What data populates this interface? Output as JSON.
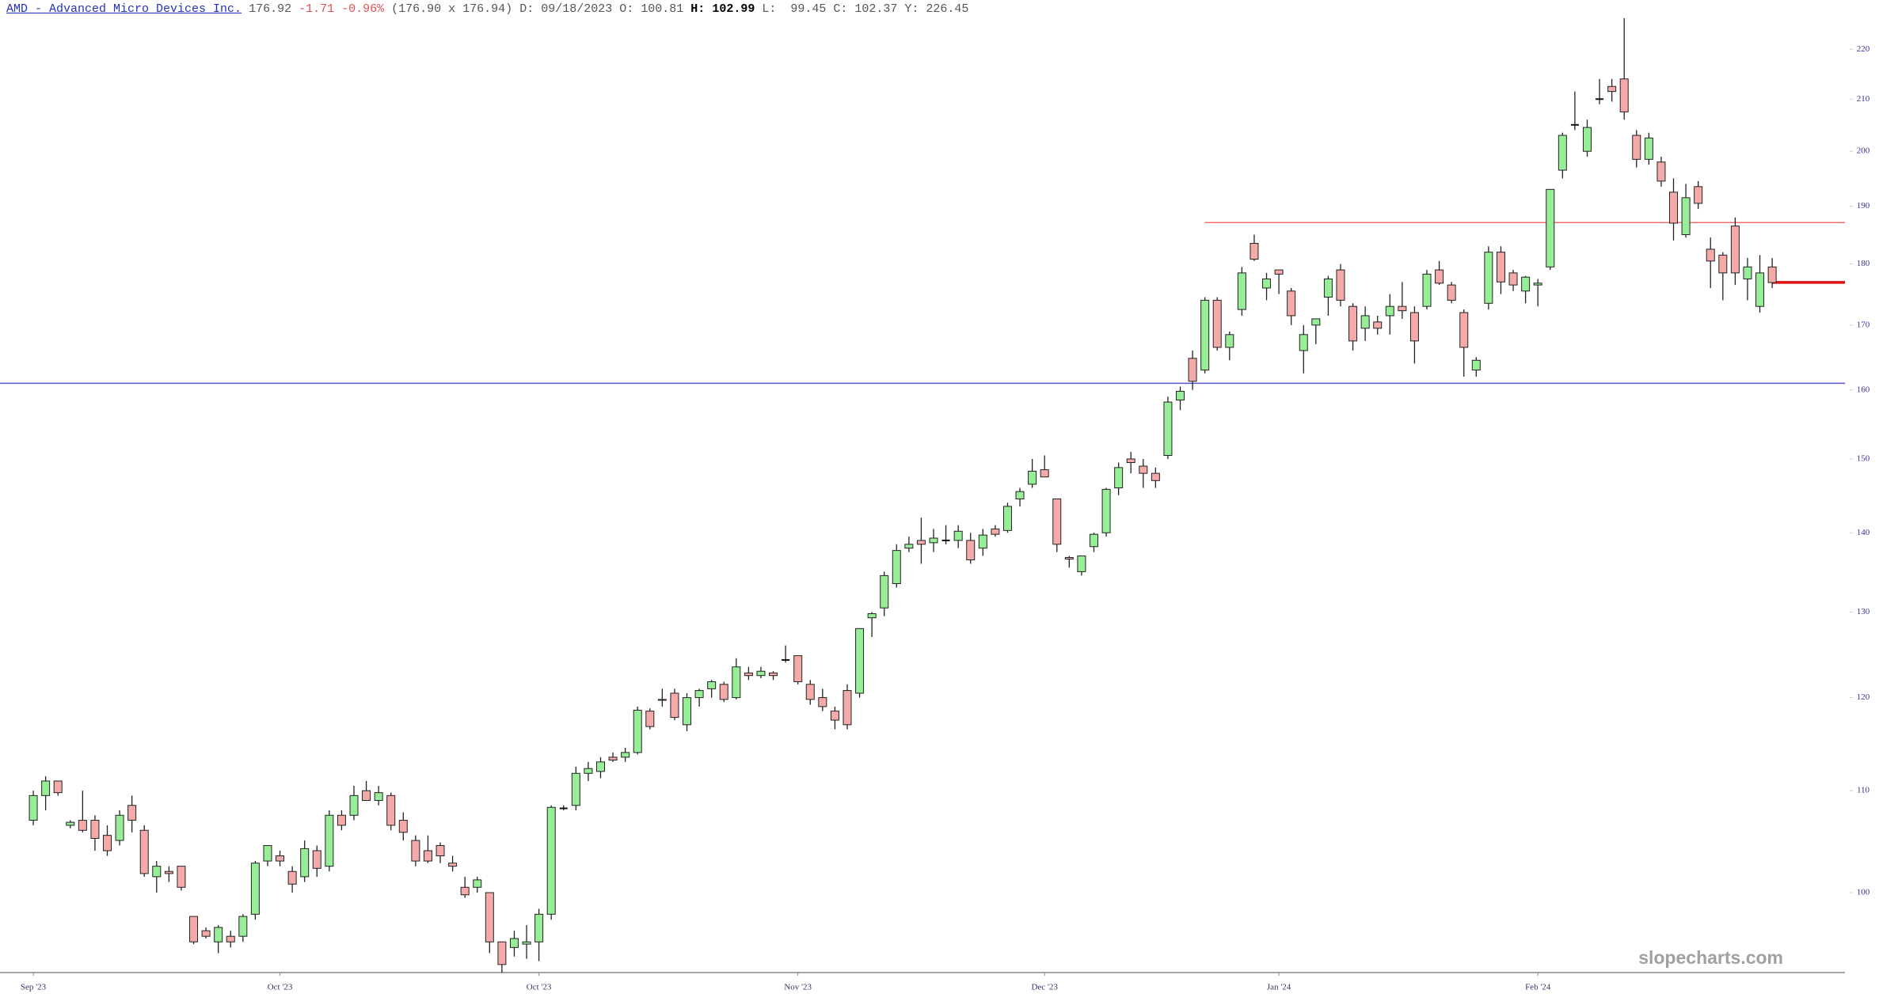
{
  "header": {
    "symbol": "AMD - Advanced Micro Devices Inc.",
    "last": "176.92",
    "change": "-1.71 -0.96%",
    "bidask": "(176.90 x 176.94)",
    "date": "D: 09/18/2023",
    "open": "O: 100.81",
    "high_label": "H:",
    "high": "102.99",
    "rest": "L:  99.45 C: 102.37 Y: 226.45"
  },
  "chart_data": {
    "type": "candlestick",
    "log_y": true,
    "ylim": [
      92.8,
      226.5
    ],
    "yticks": [
      100,
      110,
      120,
      130,
      140,
      150,
      160,
      170,
      180,
      190,
      200,
      210,
      220
    ],
    "xlim": [
      -2.7,
      146.9
    ],
    "xticks": [
      {
        "value": 0,
        "label": "Sep '23"
      },
      {
        "value": 20,
        "label": "Oct '23"
      },
      {
        "value": 41,
        "label": "Oct '23"
      },
      {
        "value": 62,
        "label": "Nov '23"
      },
      {
        "value": 82,
        "label": "Dec '23"
      },
      {
        "value": 101,
        "label": "Jan '24"
      },
      {
        "value": 122,
        "label": "Feb '24"
      }
    ],
    "up_color": "#98ee98",
    "down_color": "#f5aaaa",
    "hlines": [
      {
        "value": 161,
        "color": "#5555cc",
        "start": -2.7
      },
      {
        "value": 187.1,
        "color": "#f07070",
        "start": 95
      },
      {
        "value": 176.92,
        "color": "#e01010",
        "start": 141
      }
    ],
    "watermark": "slopecharts.com",
    "open": [
      107,
      109.5,
      111,
      106.5,
      107,
      107,
      105.5,
      105,
      108.5,
      106,
      101.5,
      102,
      102.5,
      97.8,
      96.5,
      95.5,
      96,
      96,
      98,
      103,
      103.5,
      102,
      101.5,
      104,
      102.5,
      107.5,
      107.5,
      110,
      109,
      109.5,
      107,
      105,
      104,
      104.5,
      102.8,
      100.5,
      100.5,
      100,
      95.5,
      95,
      95.3,
      95.5,
      98,
      108.2,
      108.5,
      111.8,
      112,
      113.5,
      113.5,
      114,
      118.5,
      119.8,
      120.5,
      117,
      120,
      121,
      121.5,
      120,
      122.8,
      122.5,
      122.8,
      124.3,
      124.8,
      121.5,
      120,
      118.5,
      120.8,
      120.5,
      129.3,
      130.5,
      133.5,
      138,
      139,
      138.7,
      139,
      139,
      139,
      138,
      140.5,
      140.3,
      144.5,
      146.5,
      148.5,
      144.5,
      136.8,
      135,
      138.2,
      140,
      146,
      150,
      149,
      148,
      150.5,
      158.5,
      164.8,
      163,
      174,
      166.5,
      172.5,
      183.5,
      176,
      179,
      175.5,
      166,
      170,
      174.5,
      179,
      173,
      169.5,
      170.5,
      171.5,
      173,
      172,
      173,
      179,
      176.5,
      172,
      163,
      173.5,
      182,
      178.5,
      175.5,
      176.5,
      179.5,
      196.5,
      205,
      200,
      210,
      212.5,
      214,
      203,
      198.5,
      198,
      192.5,
      185,
      193.5,
      182.5,
      181.5,
      186.5,
      177.5,
      173,
      179.5
    ],
    "high": [
      110,
      111.5,
      111,
      107,
      110,
      107.5,
      106.5,
      108,
      109.5,
      106.5,
      103,
      102.5,
      102.5,
      97.8,
      96.8,
      97,
      96.5,
      98,
      103,
      104.5,
      104,
      102.5,
      105,
      104.5,
      108,
      108,
      110.5,
      111,
      110.5,
      109.8,
      107.8,
      105.5,
      105.5,
      104.8,
      103.5,
      101.5,
      101.5,
      100,
      95.5,
      96.5,
      97,
      98.5,
      108.5,
      108.5,
      112.5,
      113,
      113.5,
      114,
      114.5,
      119,
      118.8,
      121,
      121,
      120.5,
      121,
      122,
      121.8,
      124.5,
      123.5,
      123.5,
      123,
      126,
      124.8,
      122,
      121,
      119,
      121.5,
      128,
      130,
      135,
      138.5,
      139.5,
      142,
      140.5,
      141,
      141,
      140,
      140.5,
      141,
      144,
      146,
      150,
      150.5,
      144.5,
      137,
      137,
      140,
      146,
      149.5,
      151,
      150,
      148.8,
      159,
      160.5,
      166,
      174.5,
      174.5,
      169,
      179.5,
      185,
      178.5,
      179,
      176,
      170,
      171,
      178,
      180,
      173.5,
      173,
      171.5,
      175,
      177,
      173,
      179,
      180.5,
      177,
      172.5,
      165,
      183,
      183,
      179,
      178,
      177.5,
      193,
      203.5,
      211.5,
      206,
      214,
      214,
      226.5,
      204,
      203.5,
      199,
      195,
      194,
      194.5,
      184.5,
      182,
      188,
      181,
      181.5,
      181
    ],
    "low": [
      106.5,
      108,
      109.5,
      106.2,
      105.8,
      104,
      103.5,
      104.5,
      105.8,
      101.5,
      100,
      101,
      100.2,
      95.3,
      95.8,
      94.5,
      95,
      95.5,
      97.5,
      102.5,
      102.5,
      100,
      101,
      101.5,
      102,
      106,
      107,
      109,
      108.5,
      106,
      105,
      102.5,
      102.8,
      102.8,
      102,
      99.5,
      100,
      94.5,
      92.8,
      94.2,
      94,
      93.8,
      97.5,
      108,
      108,
      111,
      111.3,
      113,
      113,
      113.8,
      116.5,
      119,
      117.5,
      116.3,
      119,
      120,
      119.5,
      119.8,
      122,
      122.2,
      122,
      124,
      121.5,
      119.2,
      118.5,
      116.5,
      116.5,
      120,
      127,
      129.5,
      133,
      137.5,
      136,
      137.5,
      138.5,
      138,
      136,
      137,
      139.5,
      140,
      143.5,
      146,
      147.5,
      137.5,
      135.5,
      134.5,
      137.5,
      139.5,
      145,
      148,
      146,
      146,
      150,
      157,
      160,
      162.5,
      166,
      164.5,
      171.5,
      180.5,
      174,
      175,
      170,
      162.5,
      167,
      171.5,
      173,
      166,
      167.5,
      168.5,
      168.5,
      171,
      164,
      172.5,
      176.5,
      173.5,
      162,
      162,
      172.5,
      175,
      175.5,
      173.5,
      173,
      179,
      195,
      204,
      199,
      209,
      209.5,
      206,
      197,
      197.5,
      193.5,
      184,
      184.5,
      189.5,
      176,
      174,
      176.5,
      174,
      172,
      176
    ],
    "close": [
      109.5,
      111,
      109.8,
      106.8,
      106,
      105.2,
      104,
      107.5,
      107,
      101.8,
      102.5,
      101.8,
      100.5,
      95.5,
      96,
      96.8,
      95.5,
      97.8,
      102.8,
      104.5,
      103,
      100.8,
      104.2,
      102.3,
      107.5,
      106.5,
      109.5,
      109,
      109.8,
      106.5,
      105.8,
      103,
      103,
      103.5,
      102.5,
      99.8,
      101.2,
      95.5,
      93.5,
      95.8,
      95.5,
      98,
      108.3,
      108.2,
      111.8,
      112.3,
      113,
      113.2,
      114,
      118.6,
      116.8,
      119.7,
      117.8,
      120,
      120.8,
      121.8,
      119.8,
      123.5,
      122.5,
      123,
      122.5,
      124.3,
      121.8,
      119.8,
      119,
      117.5,
      117,
      128,
      129.8,
      134.5,
      137.7,
      138.5,
      138.5,
      139.3,
      139,
      140.2,
      136.5,
      139.7,
      139.8,
      143.5,
      145.5,
      148.3,
      147.5,
      138.5,
      136.6,
      137,
      139.8,
      145.8,
      148.8,
      149.5,
      148,
      147,
      158.2,
      159.8,
      161.3,
      174,
      166.5,
      168.5,
      178.5,
      180.8,
      177.5,
      178.3,
      171.5,
      168.5,
      171,
      177.5,
      174,
      167.5,
      171.5,
      169.5,
      173,
      172.3,
      167.5,
      178.3,
      176.8,
      174,
      166.5,
      164.5,
      182,
      177,
      176.5,
      177.8,
      176.8,
      193,
      203,
      205,
      204.5,
      210,
      211.5,
      207.5,
      198.5,
      202.5,
      194.5,
      187,
      191.5,
      190.5,
      180.5,
      178.5,
      178.5,
      179.5,
      178.5,
      176.9
    ]
  }
}
